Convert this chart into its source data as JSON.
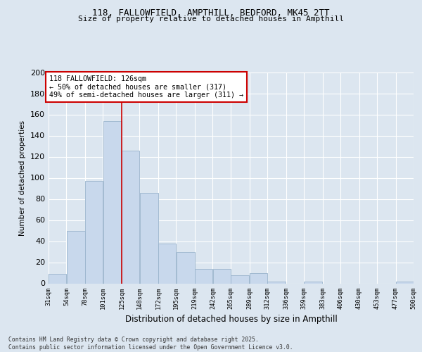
{
  "title1": "118, FALLOWFIELD, AMPTHILL, BEDFORD, MK45 2TT",
  "title2": "Size of property relative to detached houses in Ampthill",
  "xlabel": "Distribution of detached houses by size in Ampthill",
  "ylabel": "Number of detached properties",
  "footnote": "Contains HM Land Registry data © Crown copyright and database right 2025.\nContains public sector information licensed under the Open Government Licence v3.0.",
  "bins": [
    31,
    54,
    78,
    101,
    125,
    148,
    172,
    195,
    219,
    242,
    265,
    289,
    312,
    336,
    359,
    383,
    406,
    430,
    453,
    477,
    500
  ],
  "bar_heights": [
    9,
    50,
    97,
    154,
    126,
    86,
    38,
    30,
    14,
    14,
    8,
    10,
    2,
    0,
    2,
    0,
    0,
    0,
    0,
    2
  ],
  "bar_color": "#c8d8ec",
  "bar_edge_color": "#9ab4cc",
  "vline_x": 125,
  "annotation_text": "118 FALLOWFIELD: 126sqm\n← 50% of detached houses are smaller (317)\n49% of semi-detached houses are larger (311) →",
  "annotation_box_color": "#ffffff",
  "annotation_box_edge": "#cc0000",
  "vline_color": "#cc0000",
  "ylim": [
    0,
    200
  ],
  "yticks": [
    0,
    20,
    40,
    60,
    80,
    100,
    120,
    140,
    160,
    180,
    200
  ],
  "background_color": "#dce6f0",
  "plot_background": "#dce6f0",
  "grid_color": "#ffffff"
}
